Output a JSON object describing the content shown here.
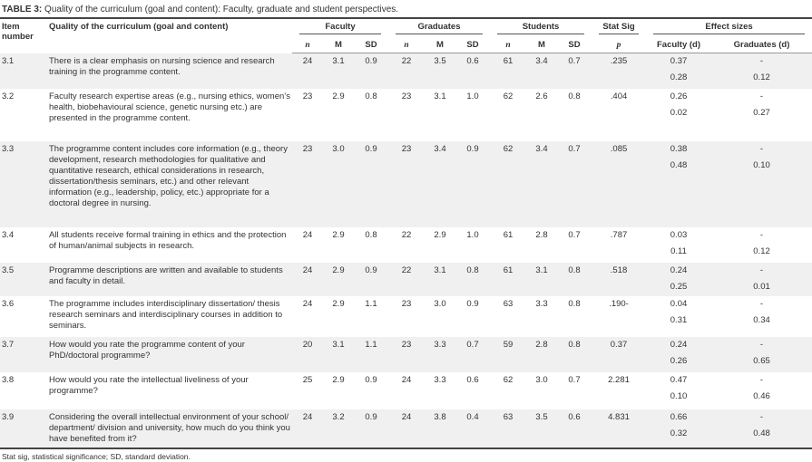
{
  "caption": {
    "label": "TABLE 3:",
    "text": " Quality of the curriculum (goal and content): Faculty, graduate and student perspectives."
  },
  "headers": {
    "item": "Item number",
    "quality": "Quality of the curriculum (goal and content)",
    "faculty": "Faculty",
    "graduates": "Graduates",
    "students": "Students",
    "stat_sig": "Stat Sig",
    "effect": "Effect sizes",
    "n": "n",
    "m": "M",
    "sd": "SD",
    "p": "p",
    "fac_d": "Faculty (d)",
    "grad_d": "Graduates (d)"
  },
  "rows": [
    {
      "item": "3.1",
      "text": "There is a clear emphasis on nursing science and research training in the programme content.",
      "fn": "24",
      "fm": "3.1",
      "fsd": "0.9",
      "gn": "22",
      "gm": "3.5",
      "gsd": "0.6",
      "sn": "61",
      "sm": "3.4",
      "ssd": "0.7",
      "p": ".235",
      "fd1": "0.37",
      "gd1": "-",
      "fd2": "0.28",
      "gd2": "0.12"
    },
    {
      "item": "3.2",
      "text": "Faculty research expertise areas (e.g., nursing ethics, women’s health, biobehavioural science, genetic nursing etc.) are presented in the programme content.",
      "fn": "23",
      "fm": "2.9",
      "fsd": "0.8",
      "gn": "23",
      "gm": "3.1",
      "gsd": "1.0",
      "sn": "62",
      "sm": "2.6",
      "ssd": "0.8",
      "p": ".404",
      "fd1": "0.26",
      "gd1": "-",
      "fd2": "0.02",
      "gd2": "0.27"
    },
    {
      "item": "3.3",
      "text": "The programme content includes core information (e.g., theory development, research methodologies for qualitative and quantitative research, ethical considerations in research, dissertation/thesis seminars, etc.) and other relevant information (e.g., leadership, policy, etc.) appropriate for a doctoral degree in nursing.",
      "fn": "23",
      "fm": "3.0",
      "fsd": "0.9",
      "gn": "23",
      "gm": "3.4",
      "gsd": "0.9",
      "sn": "62",
      "sm": "3.4",
      "ssd": "0.7",
      "p": ".085",
      "fd1": "0.38",
      "gd1": "-",
      "fd2": "0.48",
      "gd2": "0.10"
    },
    {
      "item": "3.4",
      "text": "All students receive formal training in ethics and the protection of human/animal subjects in research.",
      "fn": "24",
      "fm": "2.9",
      "fsd": "0.8",
      "gn": "22",
      "gm": "2.9",
      "gsd": "1.0",
      "sn": "61",
      "sm": "2.8",
      "ssd": "0.7",
      "p": ".787",
      "fd1": "0.03",
      "gd1": "-",
      "fd2": "0.11",
      "gd2": "0.12"
    },
    {
      "item": "3.5",
      "text": "Programme descriptions are written and available to students and faculty in detail.",
      "fn": "24",
      "fm": "2.9",
      "fsd": "0.9",
      "gn": "22",
      "gm": "3.1",
      "gsd": "0.8",
      "sn": "61",
      "sm": "3.1",
      "ssd": "0.8",
      "p": ".518",
      "fd1": "0.24",
      "gd1": "-",
      "fd2": "0.25",
      "gd2": "0.01"
    },
    {
      "item": "3.6",
      "text": "The programme includes interdisciplinary dissertation/ thesis research seminars and interdisciplinary courses in addition to seminars.",
      "fn": "24",
      "fm": "2.9",
      "fsd": "1.1",
      "gn": "23",
      "gm": "3.0",
      "gsd": "0.9",
      "sn": "63",
      "sm": "3.3",
      "ssd": "0.8",
      "p": ".190-",
      "fd1": "0.04",
      "gd1": "-",
      "fd2": "0.31",
      "gd2": "0.34"
    },
    {
      "item": "3.7",
      "text": "How would you rate the programme content of your PhD/doctoral programme?",
      "fn": "20",
      "fm": "3.1",
      "fsd": "1.1",
      "gn": "23",
      "gm": "3.3",
      "gsd": "0.7",
      "sn": "59",
      "sm": "2.8",
      "ssd": "0.8",
      "p": "0.37",
      "fd1": "0.24",
      "gd1": "-",
      "fd2": "0.26",
      "gd2": "0.65"
    },
    {
      "item": "3.8",
      "text": "How would you rate the intellectual liveliness of your programme?",
      "fn": "25",
      "fm": "2.9",
      "fsd": "0.9",
      "gn": "24",
      "gm": "3.3",
      "gsd": "0.6",
      "sn": "62",
      "sm": "3.0",
      "ssd": "0.7",
      "p": "2.281",
      "fd1": "0.47",
      "gd1": "-",
      "fd2": "0.10",
      "gd2": "0.46"
    },
    {
      "item": "3.9",
      "text": "Considering the overall intellectual environment of your school/ department/ division and university, how much do you think you have benefited from it?",
      "fn": "24",
      "fm": "3.2",
      "fsd": "0.9",
      "gn": "24",
      "gm": "3.8",
      "gsd": "0.4",
      "sn": "63",
      "sm": "3.5",
      "ssd": "0.6",
      "p": "4.831",
      "fd1": "0.66",
      "gd1": "-",
      "fd2": "0.32",
      "gd2": "0.48"
    }
  ],
  "footnote": "Stat sig, statistical significance; SD, standard deviation."
}
